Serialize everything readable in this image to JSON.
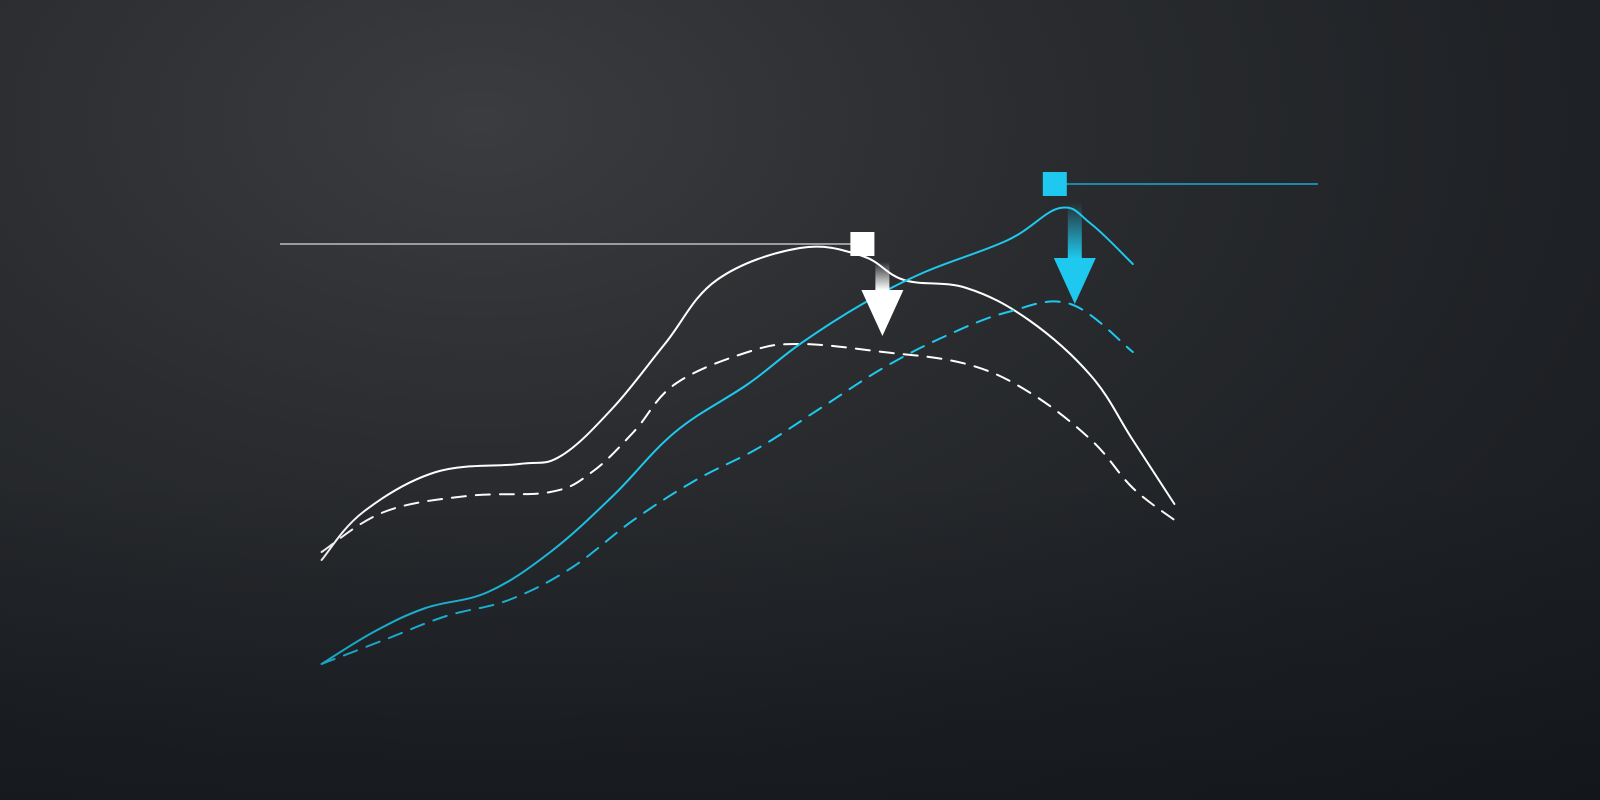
{
  "colors": {
    "white_series": "#ffffff",
    "cyan_series": "#1ec8ee",
    "frame": "#9a9c9f",
    "cyan_guide": "#1a6f86"
  },
  "chart_data": {
    "type": "line",
    "title": "",
    "xlabel": "",
    "ylabel": "",
    "grid": false,
    "legend": "none",
    "xlim": [
      0,
      100
    ],
    "ylim": [
      0,
      100
    ],
    "series": [
      {
        "style": "solid",
        "color": "#ffffff",
        "points": [
          [
            4,
            30
          ],
          [
            8,
            36
          ],
          [
            15,
            41
          ],
          [
            23,
            42
          ],
          [
            27,
            43
          ],
          [
            32,
            49
          ],
          [
            37,
            57
          ],
          [
            42,
            65
          ],
          [
            50,
            69
          ],
          [
            56,
            68
          ],
          [
            60,
            65
          ],
          [
            66,
            64
          ],
          [
            72,
            60
          ],
          [
            78,
            53
          ],
          [
            82,
            45
          ],
          [
            86,
            37
          ]
        ]
      },
      {
        "style": "dashed",
        "color": "#ffffff",
        "points": [
          [
            4,
            31
          ],
          [
            10,
            36
          ],
          [
            18,
            38
          ],
          [
            26,
            38.5
          ],
          [
            30,
            41
          ],
          [
            34,
            46
          ],
          [
            38,
            52
          ],
          [
            45,
            56
          ],
          [
            50,
            57
          ],
          [
            58,
            56
          ],
          [
            66,
            54.5
          ],
          [
            72,
            51
          ],
          [
            78,
            45
          ],
          [
            82,
            39
          ],
          [
            86,
            35
          ]
        ]
      },
      {
        "style": "solid",
        "color": "#1ec8ee",
        "points": [
          [
            4,
            17
          ],
          [
            9,
            21
          ],
          [
            14,
            24
          ],
          [
            20,
            26
          ],
          [
            26,
            31
          ],
          [
            32,
            38
          ],
          [
            38,
            46
          ],
          [
            45,
            52
          ],
          [
            50,
            57
          ],
          [
            56,
            62
          ],
          [
            62,
            66
          ],
          [
            70,
            70
          ],
          [
            75,
            74
          ],
          [
            78,
            72
          ],
          [
            82,
            67
          ]
        ]
      },
      {
        "style": "dashed",
        "color": "#1ec8ee",
        "points": [
          [
            4,
            17
          ],
          [
            10,
            20
          ],
          [
            16,
            23
          ],
          [
            22,
            25
          ],
          [
            28,
            29
          ],
          [
            34,
            35
          ],
          [
            40,
            40
          ],
          [
            46,
            44
          ],
          [
            52,
            49
          ],
          [
            58,
            54
          ],
          [
            64,
            58
          ],
          [
            70,
            61
          ],
          [
            76,
            62
          ],
          [
            82,
            56
          ]
        ]
      }
    ],
    "markers": [
      {
        "series": 0,
        "x": 56,
        "y": 69.5,
        "color": "#ffffff",
        "drop_to_y": 58
      },
      {
        "series": 2,
        "x": 74.5,
        "y": 77,
        "color": "#1ec8ee",
        "drop_to_y": 62
      }
    ]
  }
}
